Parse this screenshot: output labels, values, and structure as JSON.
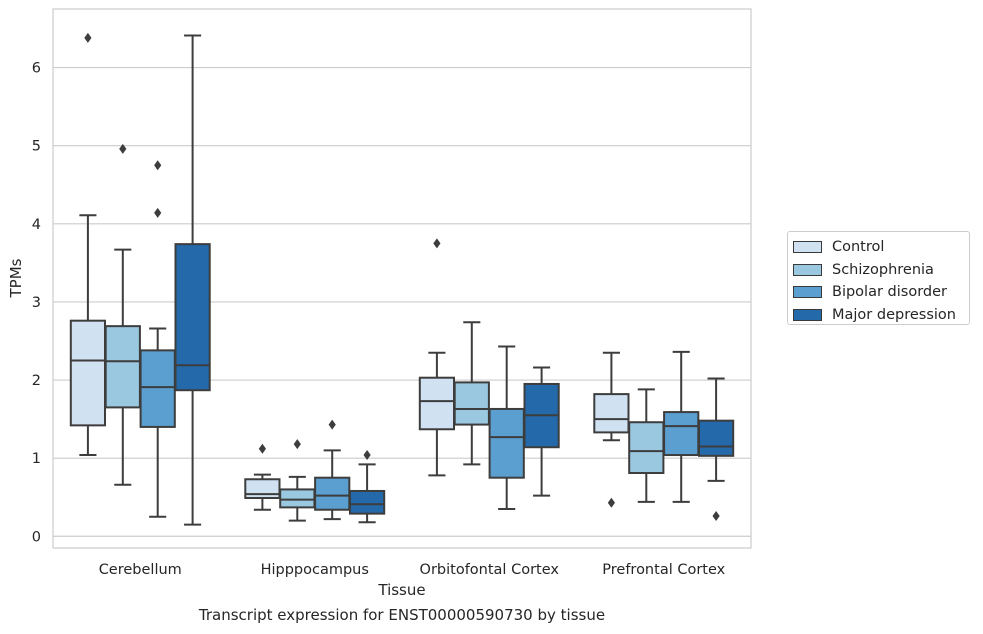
{
  "chart_data": {
    "type": "box",
    "title": "",
    "caption": "Transcript expression for ENST00000590730 by tissue",
    "xlabel": "Tissue",
    "ylabel": "TPMs",
    "ylim": [
      -0.15,
      6.75
    ],
    "yticks": [
      0,
      1,
      2,
      3,
      4,
      5,
      6
    ],
    "grid": "horizontal",
    "legend_position": "right",
    "categories": [
      "Cerebellum",
      "Hipppocampus",
      "Orbitofontal Cortex",
      "Prefrontal Cortex"
    ],
    "series": [
      {
        "name": "Control",
        "color": "#d0e1f2",
        "boxes": [
          {
            "whisker_low": 1.04,
            "q1": 1.42,
            "median": 2.25,
            "q3": 2.76,
            "whisker_high": 4.11,
            "outliers": [
              6.38
            ]
          },
          {
            "whisker_low": 0.34,
            "q1": 0.49,
            "median": 0.54,
            "q3": 0.73,
            "whisker_high": 0.79,
            "outliers": [
              1.12
            ]
          },
          {
            "whisker_low": 0.78,
            "q1": 1.37,
            "median": 1.73,
            "q3": 2.03,
            "whisker_high": 2.35,
            "outliers": [
              3.75
            ]
          },
          {
            "whisker_low": 1.23,
            "q1": 1.33,
            "median": 1.5,
            "q3": 1.82,
            "whisker_high": 2.35,
            "outliers": [
              0.43
            ]
          }
        ]
      },
      {
        "name": "Schizophrenia",
        "color": "#9ac8e0",
        "boxes": [
          {
            "whisker_low": 0.66,
            "q1": 1.65,
            "median": 2.24,
            "q3": 2.69,
            "whisker_high": 3.67,
            "outliers": [
              4.96
            ]
          },
          {
            "whisker_low": 0.2,
            "q1": 0.37,
            "median": 0.47,
            "q3": 0.6,
            "whisker_high": 0.76,
            "outliers": [
              1.18
            ]
          },
          {
            "whisker_low": 0.92,
            "q1": 1.43,
            "median": 1.63,
            "q3": 1.97,
            "whisker_high": 2.74,
            "outliers": []
          },
          {
            "whisker_low": 0.44,
            "q1": 0.81,
            "median": 1.09,
            "q3": 1.46,
            "whisker_high": 1.88,
            "outliers": []
          }
        ]
      },
      {
        "name": "Bipolar disorder",
        "color": "#5a9fcf",
        "boxes": [
          {
            "whisker_low": 0.25,
            "q1": 1.4,
            "median": 1.91,
            "q3": 2.38,
            "whisker_high": 2.66,
            "outliers": [
              4.14,
              4.75
            ]
          },
          {
            "whisker_low": 0.22,
            "q1": 0.34,
            "median": 0.52,
            "q3": 0.75,
            "whisker_high": 1.1,
            "outliers": [
              1.43
            ]
          },
          {
            "whisker_low": 0.35,
            "q1": 0.75,
            "median": 1.27,
            "q3": 1.63,
            "whisker_high": 2.43,
            "outliers": []
          },
          {
            "whisker_low": 0.44,
            "q1": 1.04,
            "median": 1.41,
            "q3": 1.59,
            "whisker_high": 2.36,
            "outliers": []
          }
        ]
      },
      {
        "name": "Major depression",
        "color": "#2469aa",
        "boxes": [
          {
            "whisker_low": 0.15,
            "q1": 1.87,
            "median": 2.19,
            "q3": 3.74,
            "whisker_high": 6.41,
            "outliers": []
          },
          {
            "whisker_low": 0.18,
            "q1": 0.29,
            "median": 0.41,
            "q3": 0.58,
            "whisker_high": 0.92,
            "outliers": [
              1.04
            ]
          },
          {
            "whisker_low": 0.52,
            "q1": 1.14,
            "median": 1.55,
            "q3": 1.95,
            "whisker_high": 2.16,
            "outliers": []
          },
          {
            "whisker_low": 0.71,
            "q1": 1.03,
            "median": 1.15,
            "q3": 1.48,
            "whisker_high": 2.02,
            "outliers": [
              0.26
            ]
          }
        ]
      }
    ]
  }
}
